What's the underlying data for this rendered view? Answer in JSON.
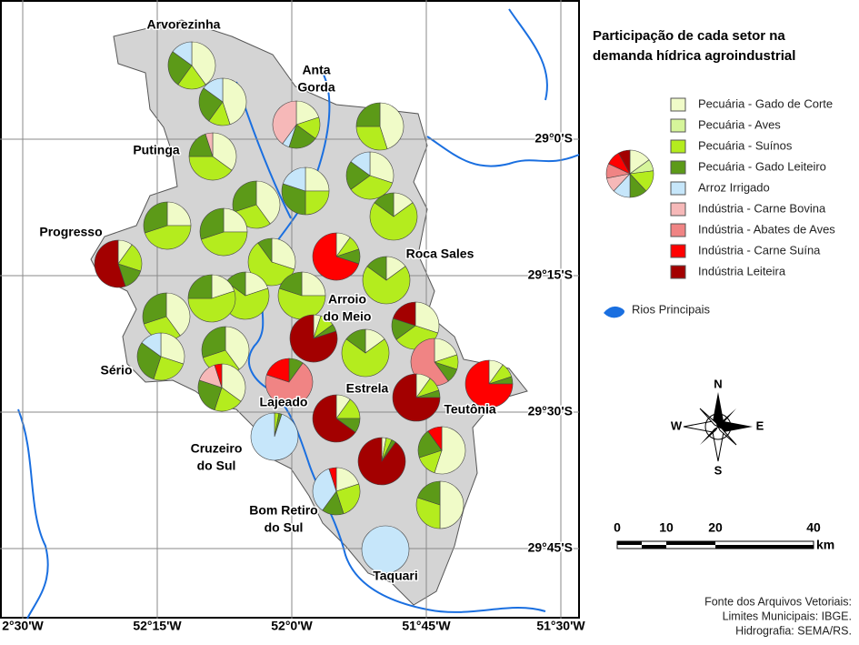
{
  "title": [
    "Participação de cada setor na",
    "demanda hídrica agroindustrial"
  ],
  "legend": {
    "items": [
      {
        "label": "Pecuária - Gado de Corte",
        "color": "#f0fbc8"
      },
      {
        "label": "Pecuária - Aves",
        "color": "#d6f59a"
      },
      {
        "label": "Pecuária - Suínos",
        "color": "#b4ec1e"
      },
      {
        "label": "Pecuária - Gado Leiteiro",
        "color": "#5c9a18"
      },
      {
        "label": "Arroz Irrigado",
        "color": "#c6e6fa"
      },
      {
        "label": "Indústria - Carne Bovina",
        "color": "#f6b8b8"
      },
      {
        "label": "Indústria - Abates de Aves",
        "color": "#f08484"
      },
      {
        "label": "Indústria - Carne Suína",
        "color": "#ff0000"
      },
      {
        "label": "Indústria Leiteira",
        "color": "#a30000"
      }
    ],
    "sample_pie": [
      15,
      8,
      15,
      12,
      12,
      10,
      10,
      10,
      8
    ],
    "rivers": "Rios Principais"
  },
  "places": [
    [
      "Arvorezinha"
    ],
    [
      "Anta",
      "Gorda"
    ],
    [
      "Putinga"
    ],
    [
      "Progresso"
    ],
    [
      "Roca Sales"
    ],
    [
      "Arroio",
      "do Meio"
    ],
    [
      "Sério"
    ],
    [
      "Lajeado"
    ],
    [
      "Estrela"
    ],
    [
      "Teutônia"
    ],
    [
      "Cruzeiro",
      "do Sul"
    ],
    [
      "Bom Retiro",
      "do Sul"
    ],
    [
      "Taquari"
    ]
  ],
  "xticks": [
    "2°30'W",
    "52°15'W",
    "52°0'W",
    "51°45'W",
    "51°30'W"
  ],
  "yticks": [
    "29°0'S",
    "29°15'S",
    "29°30'S",
    "29°45'S"
  ],
  "compass": [
    "N",
    "E",
    "S",
    "W"
  ],
  "scale": {
    "labels": [
      "0",
      "10",
      "20",
      "40"
    ],
    "unit": "km"
  },
  "source": [
    "Fonte dos Arquivos Vetoriais:",
    "Limites Municipais: IBGE.",
    "Hidrografia: SEMA/RS."
  ],
  "pies": [
    [
      40,
      0,
      20,
      25,
      15,
      0,
      0,
      0,
      0
    ],
    [
      45,
      0,
      15,
      25,
      15,
      0,
      0,
      0,
      0
    ],
    [
      20,
      0,
      15,
      20,
      5,
      40,
      0,
      0,
      0
    ],
    [
      45,
      0,
      30,
      25,
      0,
      0,
      0,
      0,
      0
    ],
    [
      35,
      0,
      40,
      20,
      0,
      5,
      0,
      0,
      0
    ],
    [
      30,
      0,
      35,
      20,
      15,
      0,
      0,
      0,
      0
    ],
    [
      25,
      0,
      25,
      30,
      20,
      0,
      0,
      0,
      0
    ],
    [
      40,
      0,
      30,
      30,
      0,
      0,
      0,
      0,
      0
    ],
    [
      25,
      0,
      45,
      30,
      0,
      0,
      0,
      0,
      0
    ],
    [
      15,
      0,
      70,
      15,
      0,
      0,
      0,
      0,
      0
    ],
    [
      25,
      0,
      45,
      30,
      0,
      0,
      0,
      0,
      0
    ],
    [
      10,
      0,
      20,
      15,
      0,
      0,
      0,
      0,
      55
    ],
    [
      30,
      0,
      60,
      10,
      0,
      0,
      0,
      0,
      0
    ],
    [
      10,
      0,
      10,
      10,
      0,
      0,
      0,
      70,
      0
    ],
    [
      15,
      0,
      70,
      15,
      0,
      0,
      0,
      0,
      0
    ],
    [
      20,
      0,
      65,
      15,
      0,
      0,
      0,
      0,
      0
    ],
    [
      25,
      0,
      55,
      20,
      0,
      0,
      0,
      0,
      0
    ],
    [
      20,
      0,
      55,
      25,
      0,
      0,
      0,
      0,
      0
    ],
    [
      40,
      0,
      30,
      30,
      0,
      0,
      0,
      0,
      0
    ],
    [
      5,
      0,
      10,
      5,
      0,
      0,
      0,
      0,
      80
    ],
    [
      30,
      0,
      35,
      15,
      0,
      0,
      0,
      0,
      20
    ],
    [
      15,
      0,
      70,
      15,
      0,
      0,
      0,
      0,
      0
    ],
    [
      40,
      0,
      30,
      30,
      0,
      0,
      0,
      0,
      0
    ],
    [
      30,
      0,
      25,
      30,
      15,
      0,
      0,
      0,
      0
    ],
    [
      20,
      0,
      10,
      10,
      0,
      0,
      60,
      0,
      0
    ],
    [
      10,
      0,
      10,
      5,
      0,
      0,
      0,
      75,
      0
    ],
    [
      0,
      0,
      0,
      10,
      0,
      0,
      70,
      20,
      0
    ],
    [
      35,
      0,
      20,
      25,
      0,
      15,
      0,
      5,
      0
    ],
    [
      10,
      0,
      10,
      5,
      0,
      0,
      0,
      0,
      75
    ],
    [
      10,
      0,
      15,
      10,
      0,
      0,
      0,
      0,
      65
    ],
    [
      0,
      0,
      3,
      2,
      95,
      0,
      0,
      0,
      0
    ],
    [
      55,
      0,
      15,
      20,
      0,
      0,
      0,
      10,
      0
    ],
    [
      3,
      0,
      4,
      3,
      0,
      0,
      0,
      0,
      90
    ],
    [
      20,
      0,
      25,
      15,
      35,
      0,
      0,
      5,
      0
    ],
    [
      50,
      0,
      30,
      20,
      0,
      0,
      0,
      0,
      0
    ],
    [
      0,
      0,
      0,
      0,
      100,
      0,
      0,
      0,
      0
    ]
  ]
}
